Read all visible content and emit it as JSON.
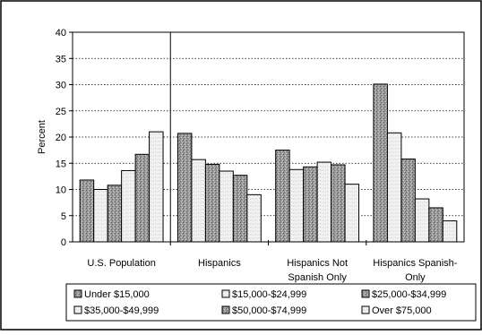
{
  "chart_data": {
    "type": "bar",
    "ylabel": "Percent",
    "ylim": [
      0,
      40
    ],
    "yticks": [
      0,
      5,
      10,
      15,
      20,
      25,
      30,
      35,
      40
    ],
    "grid": true,
    "legend_position": "bottom",
    "categories": [
      "U.S. Population",
      "Hispanics",
      "Hispanics Not Spanish Only",
      "Hispanics Spanish-Only"
    ],
    "category_display": [
      [
        "U.S. Population"
      ],
      [
        "Hispanics"
      ],
      [
        "Hispanics Not",
        "Spanish Only"
      ],
      [
        "Hispanics Spanish-",
        "Only"
      ]
    ],
    "series": [
      {
        "name": "Under $15,000",
        "values": [
          11.8,
          20.7,
          17.5,
          30.1
        ],
        "pattern": "dark"
      },
      {
        "name": "$15,000-$24,999",
        "values": [
          10.0,
          15.7,
          13.8,
          20.8
        ],
        "pattern": "light"
      },
      {
        "name": "$25,000-$34,999",
        "values": [
          10.8,
          14.8,
          14.3,
          15.8
        ],
        "pattern": "dark"
      },
      {
        "name": "$35,000-$49,999",
        "values": [
          13.6,
          13.5,
          15.2,
          8.2
        ],
        "pattern": "light"
      },
      {
        "name": "$50,000-$74,999",
        "values": [
          16.7,
          12.7,
          14.7,
          6.5
        ],
        "pattern": "dark"
      },
      {
        "name": "Over $75,000",
        "values": [
          21.0,
          9.0,
          11.0,
          4.0
        ],
        "pattern": "light"
      }
    ]
  }
}
